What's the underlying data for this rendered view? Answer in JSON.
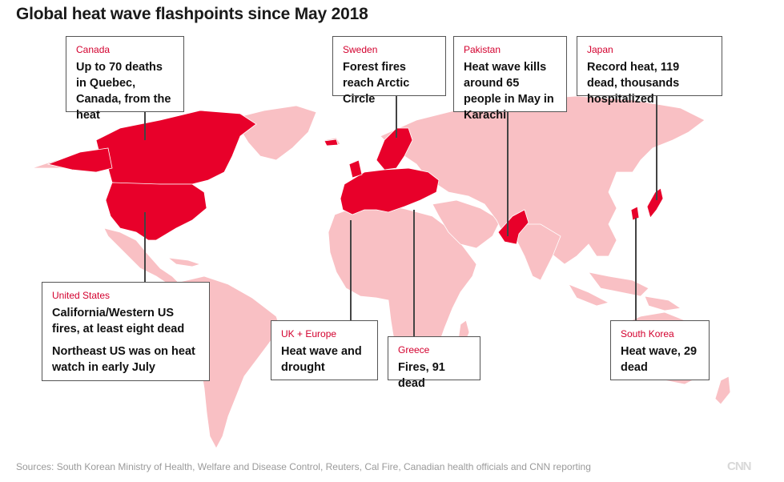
{
  "title": "Global heat wave flashpoints since May 2018",
  "colors": {
    "highlight": "#e8002a",
    "land": "#f9c0c4",
    "accent_text": "#d3002e"
  },
  "callouts": [
    {
      "id": "canada",
      "country": "Canada",
      "desc": "Up to 70 deaths in Quebec, Canada, from the heat"
    },
    {
      "id": "sweden",
      "country": "Sweden",
      "desc": "Forest fires reach Arctic Circle"
    },
    {
      "id": "pakistan",
      "country": "Pakistan",
      "desc": "Heat wave kills around 65 people in May in Karachi"
    },
    {
      "id": "japan",
      "country": "Japan",
      "desc": "Record heat, 119 dead, thousands hospitalized"
    },
    {
      "id": "united-states",
      "country": "United States",
      "desc": "California/Western US fires, at least eight dead",
      "desc2": "Northeast US was on heat watch in early July"
    },
    {
      "id": "uk-europe",
      "country": "UK + Europe",
      "desc": "Heat wave and drought"
    },
    {
      "id": "greece",
      "country": "Greece",
      "desc": "Fires, 91 dead"
    },
    {
      "id": "south-korea",
      "country": "South Korea",
      "desc": "Heat wave, 29 dead"
    }
  ],
  "source": "Sources: South Korean Ministry of Health, Welfare and Disease Control, Reuters, Cal Fire, Canadian health officials and CNN reporting",
  "logo": "CNN"
}
